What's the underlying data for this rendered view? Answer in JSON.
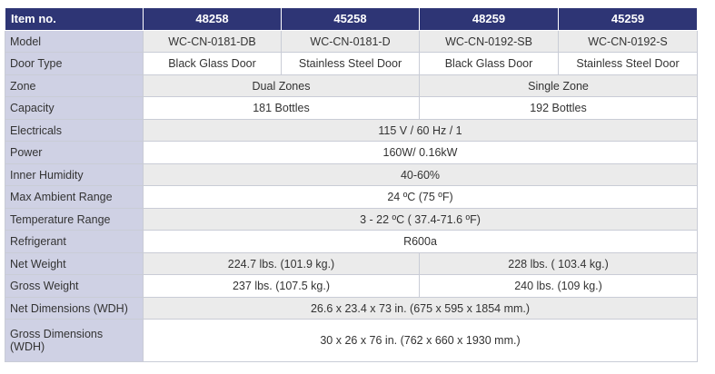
{
  "header": {
    "label": "Item no.",
    "items": [
      "48258",
      "45258",
      "48259",
      "45259"
    ]
  },
  "rows": {
    "model": {
      "label": "Model",
      "values": [
        "WC-CN-0181-DB",
        "WC-CN-0181-D",
        "WC-CN-0192-SB",
        "WC-CN-0192-S"
      ]
    },
    "door_type": {
      "label": "Door Type",
      "values": [
        "Black Glass Door",
        "Stainless Steel Door",
        "Black Glass Door",
        "Stainless Steel Door"
      ]
    },
    "zone": {
      "label": "Zone",
      "values": [
        "Dual Zones",
        "Single Zone"
      ]
    },
    "capacity": {
      "label": "Capacity",
      "values": [
        "181 Bottles",
        "192 Bottles"
      ]
    },
    "electricals": {
      "label": "Electricals",
      "value": "115 V / 60 Hz / 1"
    },
    "power": {
      "label": "Power",
      "value": "160W/ 0.16kW"
    },
    "inner_humidity": {
      "label": "Inner Humidity",
      "value": "40-60%"
    },
    "max_ambient_range": {
      "label": "Max Ambient Range",
      "value": "24 ºC (75 ºF)"
    },
    "temperature_range": {
      "label": "Temperature Range",
      "value": "3 - 22 ºC ( 37.4-71.6 ºF)"
    },
    "refrigerant": {
      "label": "Refrigerant",
      "value": "R600a"
    },
    "net_weight": {
      "label": "Net Weight",
      "values": [
        "224.7 lbs. (101.9 kg.)",
        "228 lbs. ( 103.4 kg.)"
      ]
    },
    "gross_weight": {
      "label": "Gross Weight",
      "values": [
        "237 lbs. (107.5 kg.)",
        "240 lbs. (109 kg.)"
      ]
    },
    "net_dimensions": {
      "label": "Net Dimensions (WDH)",
      "value": "26.6 x 23.4 x 73 in. (675 x 595 x 1854 mm.)"
    },
    "gross_dimensions": {
      "label": "Gross Dimensions (WDH)",
      "value": "30 x 26 x 76 in. (762 x 660 x 1930 mm.)"
    }
  }
}
